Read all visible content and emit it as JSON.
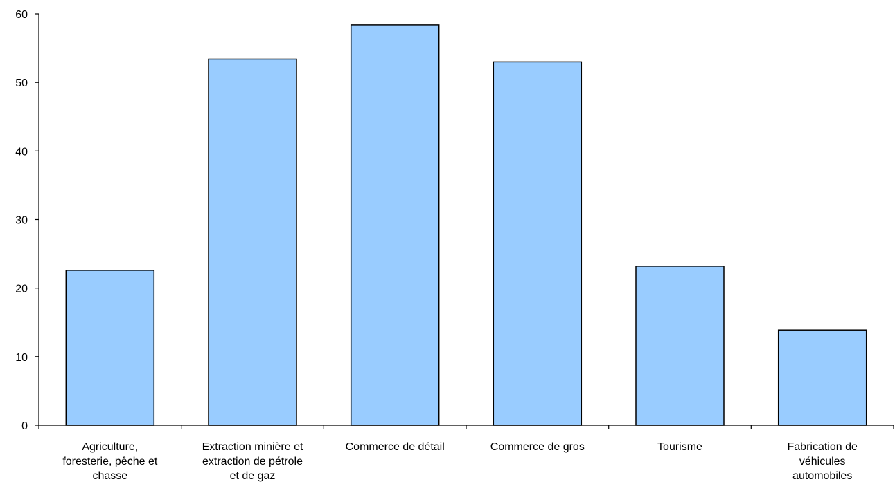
{
  "chart_data": {
    "type": "bar",
    "title": "",
    "xlabel": "",
    "ylabel": "",
    "ylim": [
      0,
      60
    ],
    "yticks": [
      0,
      10,
      20,
      30,
      40,
      50,
      60
    ],
    "grid": false,
    "categories": [
      [
        "Agriculture,",
        "foresterie, pêche et",
        "chasse"
      ],
      [
        "Extraction minière et",
        "extraction de pétrole",
        "et de gaz"
      ],
      [
        "Commerce de détail"
      ],
      [
        "Commerce de gros"
      ],
      [
        "Tourisme"
      ],
      [
        "Fabrication de",
        "véhicules",
        "automobiles"
      ]
    ],
    "values": [
      22.6,
      53.4,
      58.4,
      53.0,
      23.2,
      13.9
    ],
    "colors": {
      "bar_fill": "#99ccff",
      "bar_stroke": "#000000",
      "axis": "#000000"
    }
  }
}
